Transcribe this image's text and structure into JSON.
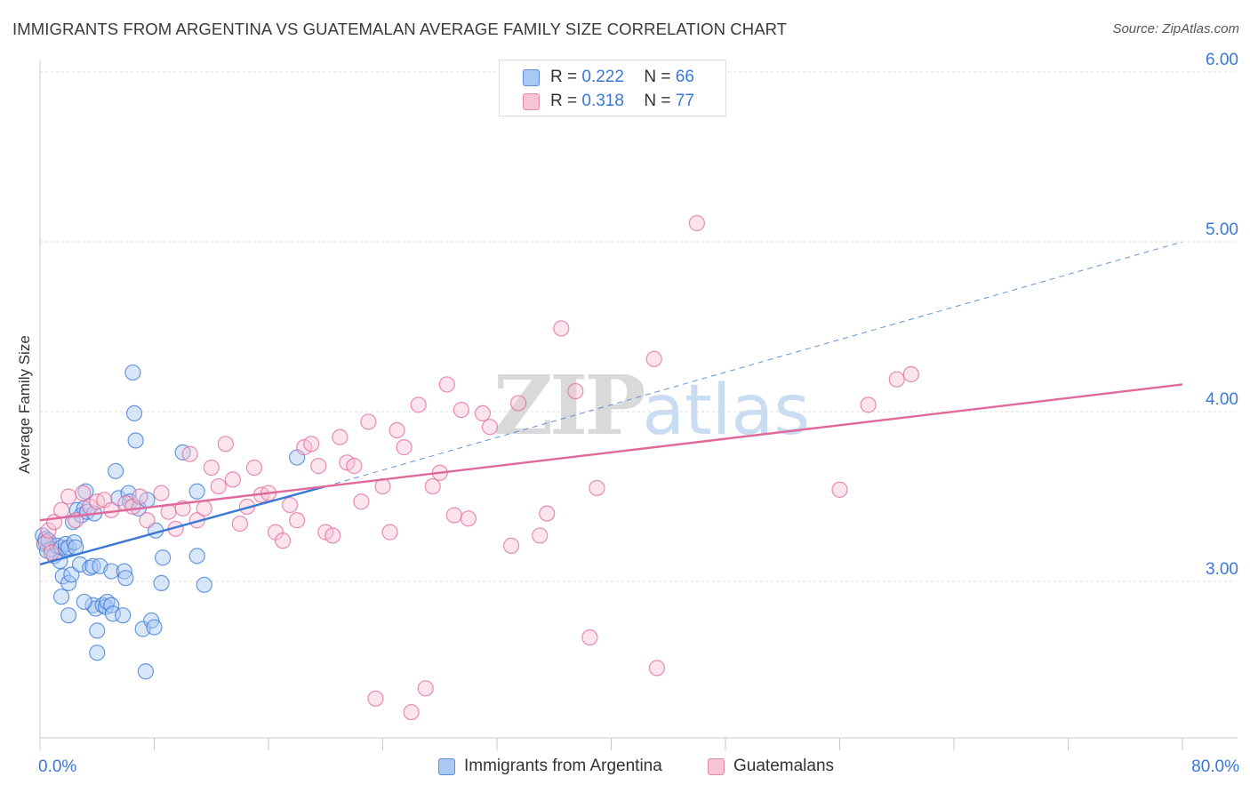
{
  "title": "IMMIGRANTS FROM ARGENTINA VS GUATEMALAN AVERAGE FAMILY SIZE CORRELATION CHART",
  "source": "Source: ZipAtlas.com",
  "watermark": "ZIPatlas",
  "legend": {
    "r_label": "R =",
    "n_label": "N =",
    "rows": [
      {
        "r": "0.222",
        "n": "66",
        "fill": "#a9c8f3",
        "stroke": "#5b8fdc"
      },
      {
        "r": "0.318",
        "n": "77",
        "fill": "#f8c4d4",
        "stroke": "#e38aa8"
      }
    ]
  },
  "bottom_legend": [
    {
      "label": "Immigrants from Argentina",
      "fill": "#a9c8f3",
      "stroke": "#5b8fdc"
    },
    {
      "label": "Guatemalans",
      "fill": "#f8c4d4",
      "stroke": "#e38aa8"
    }
  ],
  "x_axis": {
    "min_label": "0.0%",
    "max_label": "80.0%"
  },
  "chart_data": {
    "type": "scatter",
    "title": "IMMIGRANTS FROM ARGENTINA VS GUATEMALAN AVERAGE FAMILY SIZE CORRELATION CHART",
    "xlabel": "",
    "ylabel": "Average Family Size",
    "xlim": [
      0,
      80
    ],
    "ylim": [
      2.1,
      6.1
    ],
    "y_ticks": [
      3.0,
      4.0,
      5.0,
      6.0
    ],
    "y_tick_labels": [
      "3.00",
      "4.00",
      "5.00",
      "6.00"
    ],
    "grid": true,
    "legend_position": "top-center",
    "series": [
      {
        "name": "Immigrants from Argentina",
        "color": "#3b78d6",
        "fill": "#a9c8f3",
        "r": 0.222,
        "n": 66,
        "trend": {
          "x": [
            0,
            20
          ],
          "y": [
            3.1,
            3.56
          ],
          "extend_to": [
            80,
            5.0
          ]
        },
        "points": [
          [
            0.2,
            3.27
          ],
          [
            0.3,
            3.22
          ],
          [
            0.4,
            3.25
          ],
          [
            0.5,
            3.18
          ],
          [
            0.6,
            3.24
          ],
          [
            0.8,
            3.19
          ],
          [
            1.0,
            3.15
          ],
          [
            1.2,
            3.21
          ],
          [
            1.4,
            3.12
          ],
          [
            1.5,
            3.2
          ],
          [
            1.8,
            3.19
          ],
          [
            1.5,
            2.91
          ],
          [
            1.6,
            3.03
          ],
          [
            1.8,
            3.22
          ],
          [
            2.0,
            3.2
          ],
          [
            2.0,
            2.99
          ],
          [
            2.2,
            3.04
          ],
          [
            2.3,
            3.35
          ],
          [
            2.4,
            3.23
          ],
          [
            2.5,
            3.2
          ],
          [
            2.6,
            3.42
          ],
          [
            2.8,
            3.1
          ],
          [
            2.9,
            3.39
          ],
          [
            3.1,
            3.43
          ],
          [
            3.3,
            3.41
          ],
          [
            3.2,
            3.53
          ],
          [
            3.5,
            3.08
          ],
          [
            3.7,
            3.09
          ],
          [
            3.8,
            3.4
          ],
          [
            3.7,
            2.86
          ],
          [
            3.9,
            2.84
          ],
          [
            4.0,
            2.58
          ],
          [
            4.2,
            3.09
          ],
          [
            4.4,
            2.86
          ],
          [
            4.6,
            2.85
          ],
          [
            4.7,
            2.88
          ],
          [
            5.0,
            3.06
          ],
          [
            5.0,
            2.86
          ],
          [
            5.1,
            2.81
          ],
          [
            5.3,
            3.65
          ],
          [
            5.5,
            3.49
          ],
          [
            5.8,
            2.8
          ],
          [
            5.9,
            3.06
          ],
          [
            6.0,
            3.02
          ],
          [
            6.2,
            3.52
          ],
          [
            6.3,
            3.47
          ],
          [
            6.5,
            4.23
          ],
          [
            6.6,
            3.99
          ],
          [
            6.7,
            3.83
          ],
          [
            6.9,
            3.43
          ],
          [
            7.2,
            2.72
          ],
          [
            7.4,
            2.47
          ],
          [
            7.5,
            3.48
          ],
          [
            7.8,
            2.77
          ],
          [
            8.0,
            2.73
          ],
          [
            8.1,
            3.3
          ],
          [
            8.6,
            3.14
          ],
          [
            8.5,
            2.99
          ],
          [
            4.0,
            2.71
          ],
          [
            2.0,
            2.8
          ],
          [
            3.1,
            2.88
          ],
          [
            10.0,
            3.76
          ],
          [
            11.0,
            3.15
          ],
          [
            11.5,
            2.98
          ],
          [
            18.0,
            3.73
          ],
          [
            11.0,
            3.53
          ]
        ]
      },
      {
        "name": "Guatemalans",
        "color": "#e0689a",
        "fill": "#f8c4d4",
        "r": 0.318,
        "n": 77,
        "trend": {
          "x": [
            0,
            80
          ],
          "y": [
            3.36,
            4.16
          ]
        },
        "points": [
          [
            0.4,
            3.23
          ],
          [
            0.6,
            3.3
          ],
          [
            0.8,
            3.17
          ],
          [
            1.0,
            3.35
          ],
          [
            1.5,
            3.42
          ],
          [
            2.0,
            3.5
          ],
          [
            3.0,
            3.52
          ],
          [
            3.5,
            3.44
          ],
          [
            4.0,
            3.47
          ],
          [
            4.5,
            3.48
          ],
          [
            5.0,
            3.42
          ],
          [
            6.0,
            3.46
          ],
          [
            6.5,
            3.44
          ],
          [
            7.0,
            3.5
          ],
          [
            7.5,
            3.36
          ],
          [
            8.5,
            3.52
          ],
          [
            9.0,
            3.41
          ],
          [
            9.5,
            3.31
          ],
          [
            10.0,
            3.43
          ],
          [
            10.5,
            3.75
          ],
          [
            11.0,
            3.36
          ],
          [
            11.5,
            3.43
          ],
          [
            12.0,
            3.67
          ],
          [
            13.0,
            3.81
          ],
          [
            12.5,
            3.56
          ],
          [
            13.5,
            3.6
          ],
          [
            14.0,
            3.34
          ],
          [
            14.5,
            3.44
          ],
          [
            15.0,
            3.67
          ],
          [
            15.5,
            3.51
          ],
          [
            16.0,
            3.52
          ],
          [
            16.5,
            3.29
          ],
          [
            17.0,
            3.24
          ],
          [
            17.5,
            3.45
          ],
          [
            18.0,
            3.36
          ],
          [
            18.5,
            3.79
          ],
          [
            19.0,
            3.81
          ],
          [
            19.5,
            3.68
          ],
          [
            20.0,
            3.29
          ],
          [
            20.5,
            3.27
          ],
          [
            21.0,
            3.85
          ],
          [
            21.5,
            3.7
          ],
          [
            22.0,
            3.68
          ],
          [
            22.5,
            3.47
          ],
          [
            23.0,
            3.94
          ],
          [
            23.5,
            2.31
          ],
          [
            24.0,
            3.56
          ],
          [
            24.5,
            3.29
          ],
          [
            25.0,
            3.89
          ],
          [
            25.5,
            3.79
          ],
          [
            26.0,
            2.23
          ],
          [
            26.5,
            4.04
          ],
          [
            27.0,
            2.37
          ],
          [
            27.5,
            3.56
          ],
          [
            28.0,
            3.64
          ],
          [
            28.5,
            4.16
          ],
          [
            29.0,
            3.39
          ],
          [
            29.5,
            4.01
          ],
          [
            30.0,
            3.37
          ],
          [
            31.0,
            3.99
          ],
          [
            31.5,
            3.91
          ],
          [
            33.0,
            3.21
          ],
          [
            33.5,
            4.05
          ],
          [
            35.0,
            3.27
          ],
          [
            35.5,
            3.4
          ],
          [
            36.5,
            4.49
          ],
          [
            37.5,
            4.12
          ],
          [
            38.5,
            2.67
          ],
          [
            39.0,
            3.55
          ],
          [
            43.0,
            4.31
          ],
          [
            43.2,
            2.49
          ],
          [
            46.0,
            5.11
          ],
          [
            56.0,
            3.54
          ],
          [
            58.0,
            4.04
          ],
          [
            60.0,
            4.19
          ],
          [
            61.0,
            4.22
          ],
          [
            2.5,
            3.36
          ]
        ]
      }
    ]
  }
}
